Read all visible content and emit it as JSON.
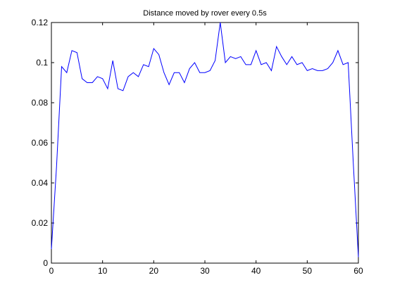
{
  "chart_data": {
    "type": "line",
    "title": "Distance moved by rover every 0.5s",
    "xlabel": "",
    "ylabel": "",
    "xlim": [
      0,
      60
    ],
    "ylim": [
      0,
      0.12
    ],
    "x_ticks": [
      0,
      10,
      20,
      30,
      40,
      50,
      60
    ],
    "x_tick_labels": [
      "0",
      "10",
      "20",
      "30",
      "40",
      "50",
      "60"
    ],
    "y_ticks": [
      0,
      0.02,
      0.04,
      0.06,
      0.08,
      0.1,
      0.12
    ],
    "y_tick_labels": [
      "0",
      "0.02",
      "0.04",
      "0.06",
      "0.08",
      "0.1",
      "0.12"
    ],
    "grid": false,
    "line_color": "#0000ff",
    "series": [
      {
        "x": [
          0,
          1,
          2,
          3,
          4,
          5,
          6,
          7,
          8,
          9,
          10,
          11,
          12,
          13,
          14,
          15,
          16,
          17,
          18,
          19,
          20,
          21,
          22,
          23,
          24,
          25,
          26,
          27,
          28,
          29,
          30,
          31,
          32,
          33,
          34,
          35,
          36,
          37,
          38,
          39,
          40,
          41,
          42,
          43,
          44,
          45,
          46,
          47,
          48,
          49,
          50,
          51,
          52,
          53,
          54,
          55,
          56,
          57,
          58,
          59,
          60
        ],
        "y": [
          0.007,
          0.048,
          0.098,
          0.095,
          0.106,
          0.105,
          0.092,
          0.09,
          0.09,
          0.093,
          0.092,
          0.087,
          0.101,
          0.087,
          0.086,
          0.093,
          0.095,
          0.093,
          0.099,
          0.098,
          0.107,
          0.104,
          0.095,
          0.089,
          0.095,
          0.095,
          0.09,
          0.097,
          0.1,
          0.095,
          0.095,
          0.096,
          0.101,
          0.12,
          0.1,
          0.103,
          0.102,
          0.103,
          0.099,
          0.099,
          0.106,
          0.099,
          0.1,
          0.096,
          0.108,
          0.103,
          0.099,
          0.103,
          0.099,
          0.1,
          0.096,
          0.097,
          0.096,
          0.096,
          0.097,
          0.1,
          0.106,
          0.099,
          0.1,
          0.05,
          0.003
        ]
      }
    ]
  }
}
